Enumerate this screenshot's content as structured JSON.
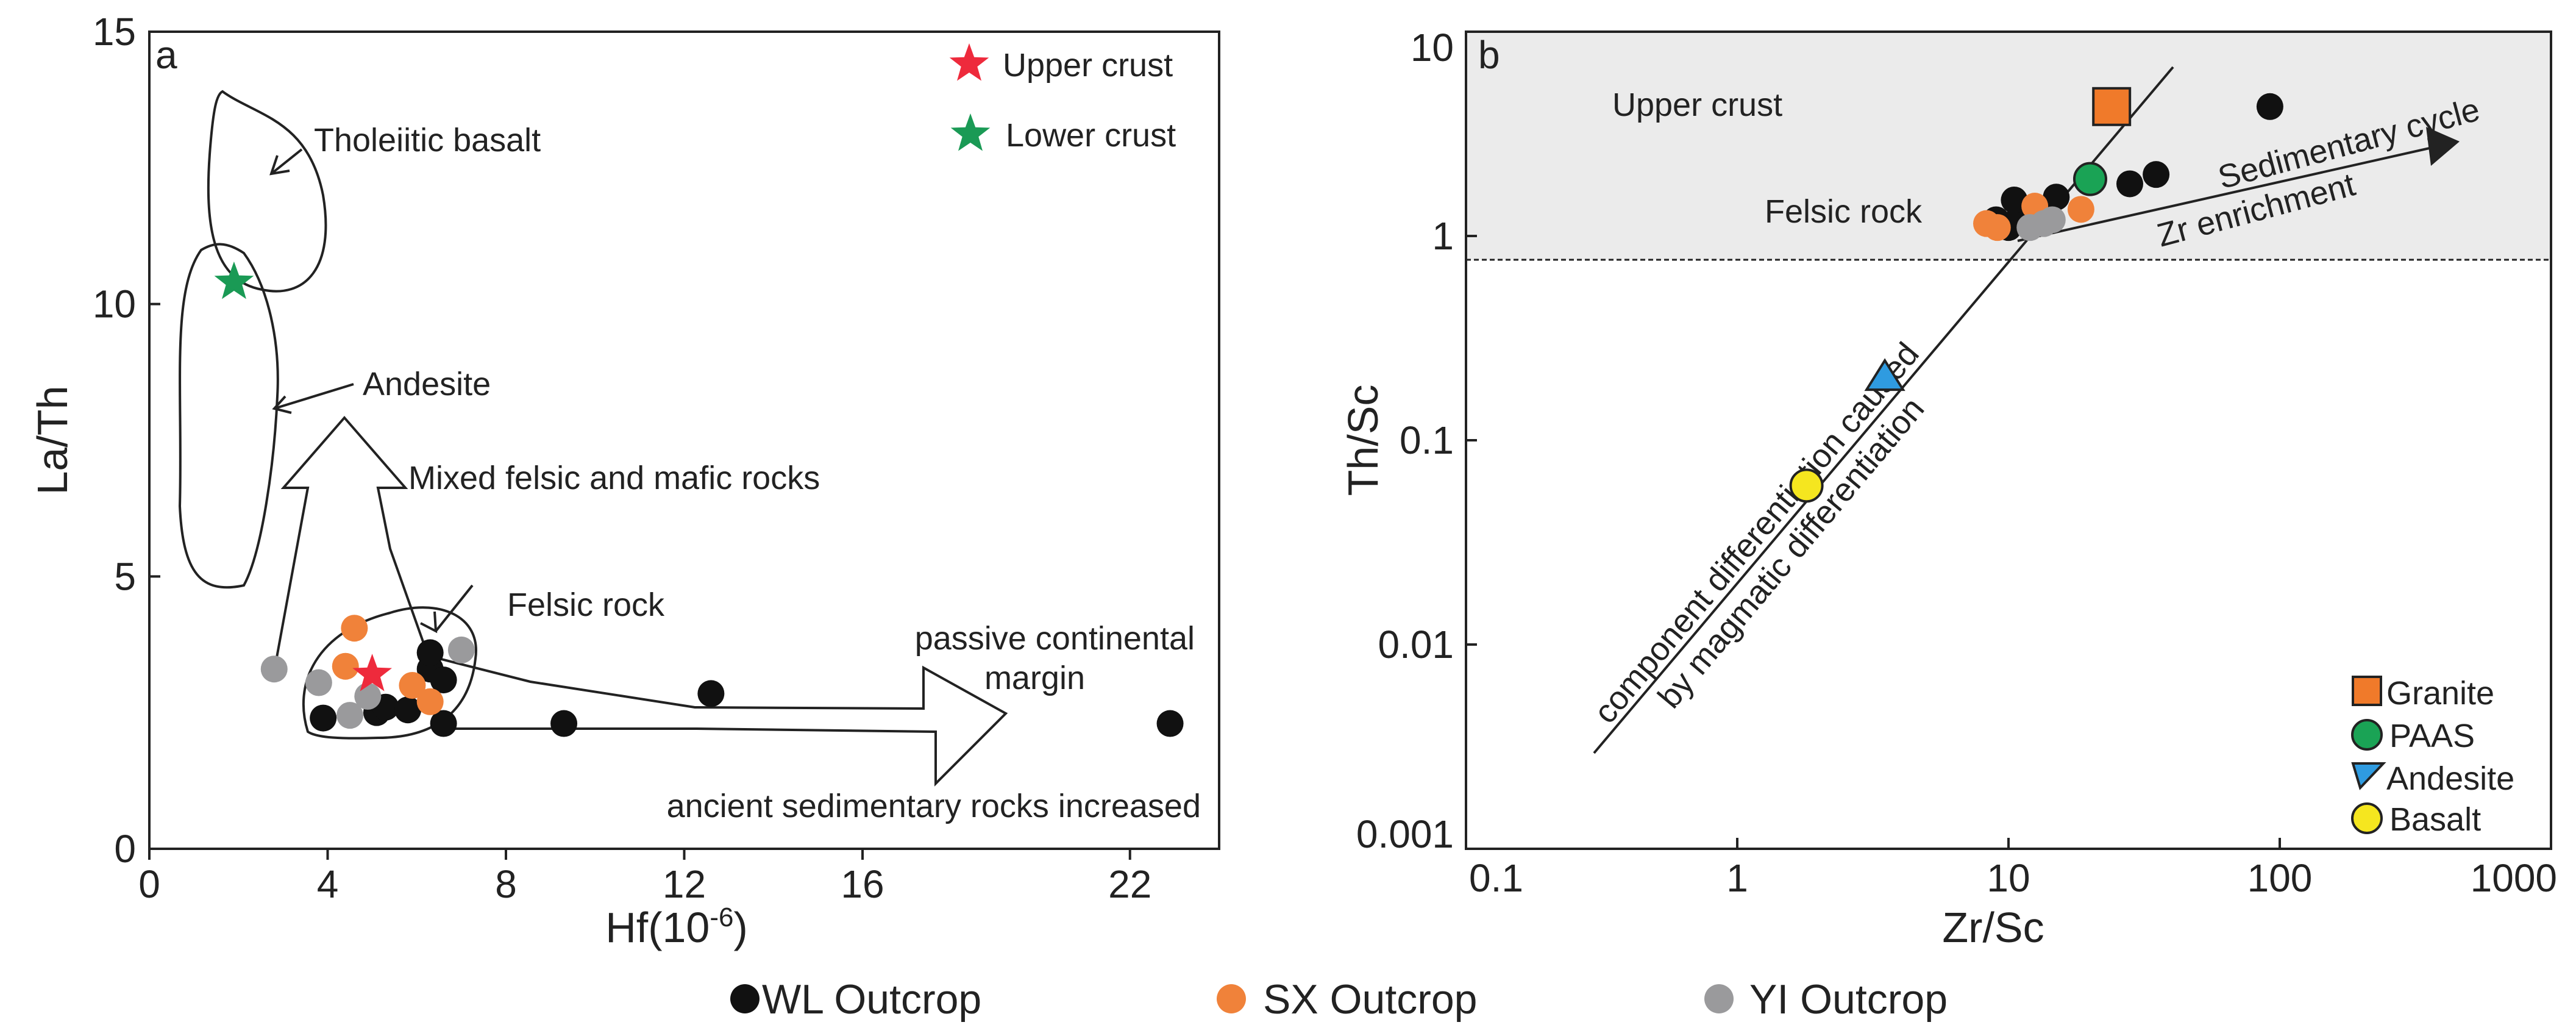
{
  "chart_data": [
    {
      "type": "scatter",
      "panel": "a",
      "xlabel_main": "Hf(10",
      "xlabel_sup": "-6",
      "xlabel_end": ")",
      "ylabel": "La/Th",
      "xlim": [
        0,
        24
      ],
      "ylim": [
        0,
        15
      ],
      "xticks": [
        0,
        4,
        8,
        12,
        16,
        22
      ],
      "yticks": [
        0,
        5,
        10,
        15
      ],
      "legend": [
        {
          "label": "Upper crust",
          "color": "#ee2a3c",
          "marker": "star"
        },
        {
          "label": "Lower crust",
          "color": "#1a9a55",
          "marker": "star"
        }
      ],
      "reference_points": [
        {
          "name": "Upper crust",
          "x": 5.0,
          "y": 3.2,
          "color": "#ee2a3c"
        },
        {
          "name": "Lower crust",
          "x": 1.9,
          "y": 10.4,
          "color": "#1a9a55"
        }
      ],
      "annotations": {
        "tholeiitic": "Tholeiitic basalt",
        "andesite": "Andesite",
        "mixed": "Mixed felsic and mafic rocks",
        "felsic": "Felsic rock",
        "passive1": "passive continental",
        "passive2": "margin",
        "ancient": "ancient sedimentary rocks increased"
      },
      "series": [
        {
          "name": "WL Outcrop",
          "color": "#111111",
          "points": [
            [
              3.9,
              2.4
            ],
            [
              5.1,
              2.5
            ],
            [
              5.3,
              2.6
            ],
            [
              5.8,
              2.55
            ],
            [
              6.3,
              3.3
            ],
            [
              6.3,
              3.6
            ],
            [
              6.6,
              3.1
            ],
            [
              6.6,
              2.3
            ],
            [
              9.3,
              2.3
            ],
            [
              12.6,
              2.85
            ],
            [
              22.9,
              2.3
            ]
          ]
        },
        {
          "name": "SX Outcrop",
          "color": "#f0823a",
          "points": [
            [
              4.6,
              4.05
            ],
            [
              4.4,
              3.35
            ],
            [
              5.9,
              3.0
            ],
            [
              6.3,
              2.7
            ]
          ]
        },
        {
          "name": "YI Outcrop",
          "color": "#9a9a9c",
          "points": [
            [
              2.8,
              3.3
            ],
            [
              3.8,
              3.05
            ],
            [
              4.5,
              2.45
            ],
            [
              4.9,
              2.8
            ],
            [
              7.0,
              3.65
            ]
          ]
        }
      ]
    },
    {
      "type": "scatter",
      "panel": "b",
      "scale": "log-log",
      "xlabel": "Zr/Sc",
      "ylabel": "Th/Sc",
      "xlim": [
        0.1,
        1000
      ],
      "ylim": [
        0.001,
        10
      ],
      "xticks": [
        "0.1",
        "1",
        "10",
        "100",
        "1000"
      ],
      "yticks": [
        "0.001",
        "0.01",
        "0.1",
        "1",
        "10"
      ],
      "upper_crust_threshold": 0.8,
      "legend": [
        {
          "label": "Granite",
          "color": "#f07a2a",
          "marker": "square"
        },
        {
          "label": "PAAS",
          "color": "#1aa355",
          "marker": "circle"
        },
        {
          "label": "Andesite",
          "color": "#2f9be0",
          "marker": "triangle"
        },
        {
          "label": "Basalt",
          "color": "#f5e61f",
          "marker": "circle"
        }
      ],
      "reference_points": [
        {
          "name": "Granite",
          "x": 24,
          "y": 4.3
        },
        {
          "name": "PAAS",
          "x": 20,
          "y": 1.9
        },
        {
          "name": "Andesite",
          "x": 3.5,
          "y": 0.2
        },
        {
          "name": "Basalt",
          "x": 1.8,
          "y": 0.06
        }
      ],
      "annotations": {
        "upper_crust": "Upper crust",
        "felsic": "Felsic rock",
        "sed_cycle": "Sedimentary cycle",
        "zr_enrich": "Zr enrichment",
        "diff1": "component differentiation caused",
        "diff2": "by magmatic differentiation"
      },
      "series": [
        {
          "name": "WL Outcrop",
          "color": "#111111",
          "points": [
            [
              9,
              1.2
            ],
            [
              10,
              1.1
            ],
            [
              11,
              1.25
            ],
            [
              10.5,
              1.5
            ],
            [
              12,
              1.15
            ],
            [
              15,
              1.55
            ],
            [
              28,
              1.8
            ],
            [
              35,
              2.0
            ],
            [
              92,
              4.3
            ],
            [
              13,
              1.3
            ]
          ]
        },
        {
          "name": "SX Outcrop",
          "color": "#f0823a",
          "points": [
            [
              8.3,
              1.15
            ],
            [
              9.1,
              1.1
            ],
            [
              12.5,
              1.4
            ],
            [
              18.5,
              1.35
            ]
          ]
        },
        {
          "name": "YI Outcrop",
          "color": "#9a9a9c",
          "points": [
            [
              12,
              1.1
            ],
            [
              13.5,
              1.15
            ],
            [
              14.5,
              1.2
            ]
          ]
        }
      ]
    }
  ],
  "bottom_legend": [
    {
      "label": "WL Outcrop",
      "color": "#111111"
    },
    {
      "label": "SX Outcrop",
      "color": "#f0823a"
    },
    {
      "label": "YI Outcrop",
      "color": "#9a9a9c"
    }
  ]
}
